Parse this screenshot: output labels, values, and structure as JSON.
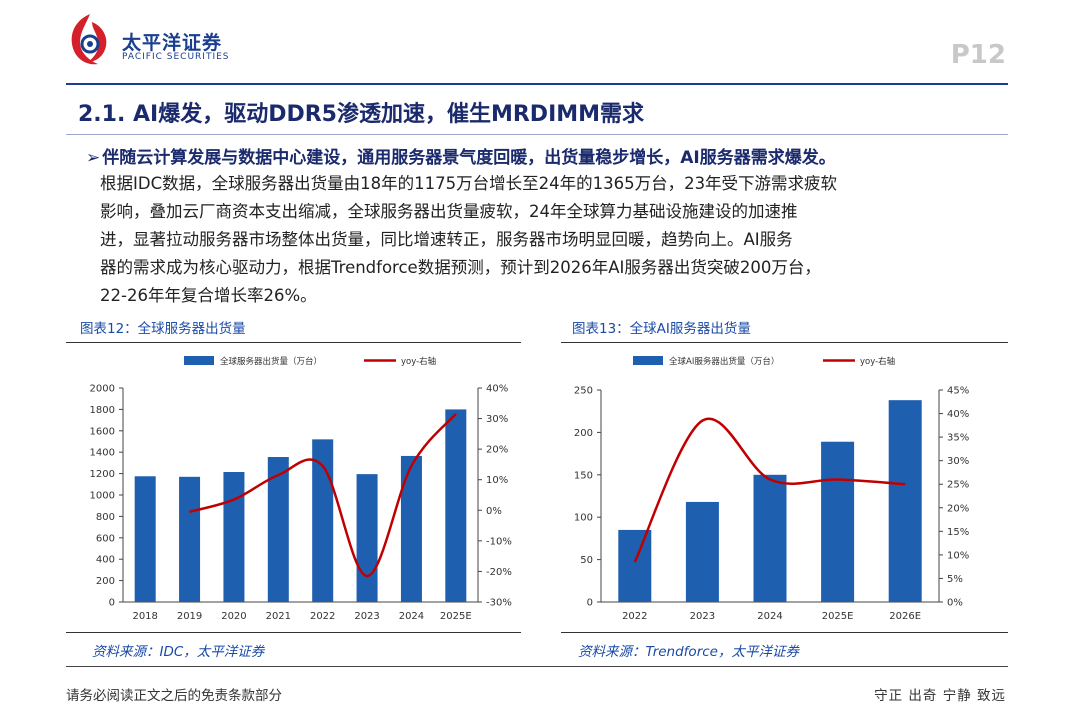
{
  "header": {
    "brand_cn": "太平洋证券",
    "brand_en": "PACIFIC SECURITIES",
    "page_number": "P12"
  },
  "section_title": "2.1. AI爆发，驱动DDR5渗透加速，催生MRDIMM需求",
  "bullet": "伴随云计算发展与数据中心建设，通用服务器景气度回暖，出货量稳步增长，AI服务器需求爆发。",
  "body_lines": [
    "根据IDC数据，全球服务器出货量由18年的1175万台增长至24年的1365万台，23年受下游需求疲软",
    "影响，叠加云厂商资本支出缩减，全球服务器出货量疲软，24年全球算力基础设施建设的加速推",
    "进，显著拉动服务器市场整体出货量，同比增速转正，服务器市场明显回暖，趋势向上。AI服务",
    "器的需求成为核心驱动力，根据Trendforce数据预测，预计到2026年AI服务器出货突破200万台，",
    "22-26年年复合增长率26%。"
  ],
  "figures": {
    "fig12_label": "图表12：全球服务器出货量",
    "fig13_label": "图表13：全球AI服务器出货量",
    "fig12_source": "资料来源：IDC，太平洋证券",
    "fig13_source": "资料来源：Trendforce，太平洋证券"
  },
  "footer": {
    "left": "请务必阅读正文之后的免责条款部分",
    "right": "守正 出奇 宁静 致远"
  },
  "colors": {
    "bar": "#1f5fb0",
    "line": "#c00000",
    "brand": "#1a3f8f"
  },
  "chart_data": [
    {
      "type": "bar",
      "categories": [
        "2018",
        "2019",
        "2020",
        "2021",
        "2022",
        "2023",
        "2024",
        "2025E"
      ],
      "series": [
        {
          "name": "全球服务器出货量（万台）",
          "type": "bar",
          "axis": "left",
          "values": [
            1175,
            1170,
            1215,
            1355,
            1520,
            1195,
            1365,
            1800
          ]
        },
        {
          "name": "yoy-右轴",
          "type": "line",
          "axis": "right",
          "values": [
            null,
            -0.5,
            3.5,
            11.5,
            14.5,
            -21.5,
            14.5,
            31.5
          ]
        }
      ],
      "ylim": [
        0,
        2000
      ],
      "yticks": [
        "0",
        "200",
        "400",
        "600",
        "800",
        "1000",
        "1200",
        "1400",
        "1600",
        "1800",
        "2000"
      ],
      "y2lim": [
        -30,
        40
      ],
      "y2ticks": [
        "-30%",
        "-20%",
        "-10%",
        "0%",
        "10%",
        "20%",
        "30%",
        "40%"
      ],
      "legend": "top-center",
      "grid": false
    },
    {
      "type": "bar",
      "categories": [
        "2022",
        "2023",
        "2024",
        "2025E",
        "2026E"
      ],
      "series": [
        {
          "name": "全球AI服务器出货量（万台）",
          "type": "bar",
          "axis": "left",
          "values": [
            85,
            118,
            150,
            189,
            238
          ]
        },
        {
          "name": "yoy-右轴",
          "type": "line",
          "axis": "right",
          "values": [
            8.5,
            38.5,
            26,
            26,
            25
          ]
        }
      ],
      "ylim": [
        0,
        250
      ],
      "yticks": [
        "0",
        "50",
        "100",
        "150",
        "200",
        "250"
      ],
      "y2lim": [
        0,
        45
      ],
      "y2ticks": [
        "0%",
        "5%",
        "10%",
        "15%",
        "20%",
        "25%",
        "30%",
        "35%",
        "40%",
        "45%"
      ],
      "legend": "top-center",
      "grid": false
    }
  ]
}
